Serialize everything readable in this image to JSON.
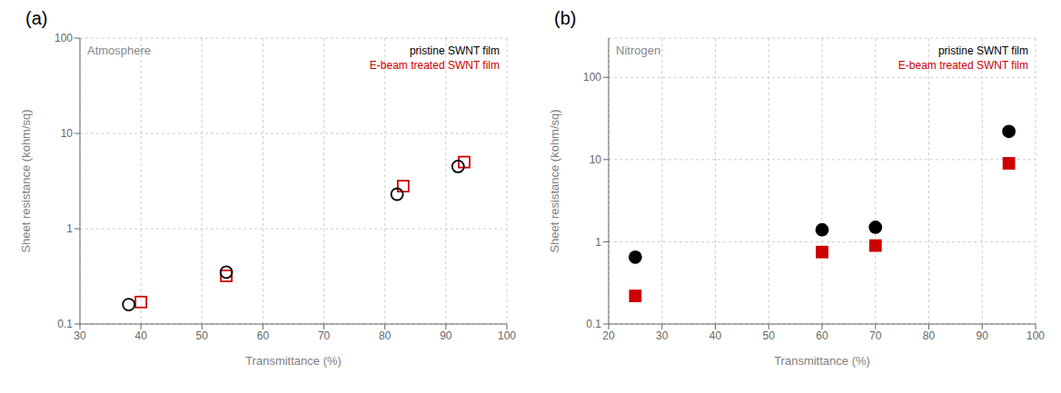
{
  "chart_data": [
    {
      "type": "scatter",
      "title": "(a)",
      "annotations": [
        {
          "text": "Atmosphere",
          "color": "#888888"
        }
      ],
      "x_label": "Transmittance (%)",
      "y_label": "Sheet resistance (kohm/sq)",
      "xlim": [
        30,
        100
      ],
      "ylim": [
        0.1,
        100
      ],
      "xticks": [
        30,
        40,
        50,
        60,
        70,
        80,
        90,
        100
      ],
      "yticks": [
        0.1,
        1,
        10,
        100
      ],
      "log": "y",
      "grid": true,
      "legend": "upper right",
      "series": [
        {
          "name": "pristine SWNT film",
          "color": "#000000",
          "marker": "circle_open",
          "x": [
            38,
            54,
            82,
            92
          ],
          "values": [
            0.16,
            0.35,
            2.3,
            4.5
          ]
        },
        {
          "name": "E-beam treated SWNT film",
          "color": "#cc0000",
          "marker": "square_open",
          "x": [
            40,
            54,
            83,
            93
          ],
          "values": [
            0.17,
            0.32,
            2.8,
            5.0
          ]
        }
      ]
    },
    {
      "type": "scatter",
      "title": "(b)",
      "annotations": [
        {
          "text": "Nitrogen",
          "color": "#888888"
        }
      ],
      "x_label": "Transmittance (%)",
      "y_label": "Sheet resistance (kohm/sq)",
      "xlim": [
        20,
        100
      ],
      "ylim": [
        0.1,
        300
      ],
      "xticks": [
        20,
        30,
        40,
        50,
        60,
        70,
        80,
        90,
        100
      ],
      "yticks": [
        0.1,
        1,
        10,
        100
      ],
      "log": "y",
      "grid": true,
      "legend": "upper right",
      "series": [
        {
          "name": "pristine SWNT film",
          "color": "#000000",
          "marker": "circle",
          "x": [
            25,
            60,
            70,
            95
          ],
          "values": [
            0.65,
            1.4,
            1.5,
            22
          ]
        },
        {
          "name": "E-beam treated SWNT film",
          "color": "#cc0000",
          "marker": "square",
          "x": [
            25,
            60,
            70,
            95
          ],
          "values": [
            0.22,
            0.75,
            0.9,
            9.0
          ]
        }
      ]
    }
  ]
}
